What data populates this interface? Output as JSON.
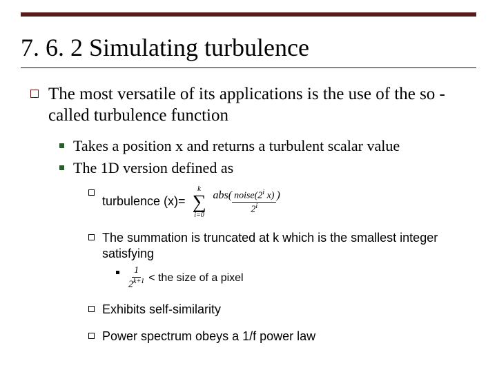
{
  "colors": {
    "rule": "#5a1a1a",
    "bullet_l1": "#6b0f0f",
    "bullet_l2": "#2f5a2f",
    "bullet_l3": "#000000",
    "bullet_l4": "#000000",
    "text": "#000000",
    "background": "#ffffff"
  },
  "title": "7. 6. 2 Simulating turbulence",
  "l1_item": "The most versatile of its applications is the use of the so -called turbulence function",
  "l2_items": {
    "a": "Takes a position x and returns a turbulent scalar value",
    "b": "The 1D version defined as"
  },
  "l3_items": {
    "a_prefix": "turbulence (x)=",
    "b": "The summation is truncated at k which is the smallest integer satisfying",
    "c": "Exhibits self-similarity",
    "d": "Power spectrum obeys a 1/f power law"
  },
  "l4_item_suffix": " < the size of a pixel",
  "formula_sum": {
    "top": "k",
    "sigma": "∑",
    "bottom": "i=0",
    "abs_open": "abs(",
    "numerator": "noise(2",
    "numerator_sup": "i",
    "numerator_tail": " x)",
    "denominator_base": "2",
    "denominator_sup": "i",
    "abs_close": ")"
  },
  "formula_pixel": {
    "numerator": "1",
    "den_base": "2",
    "den_sup": "k+1"
  }
}
